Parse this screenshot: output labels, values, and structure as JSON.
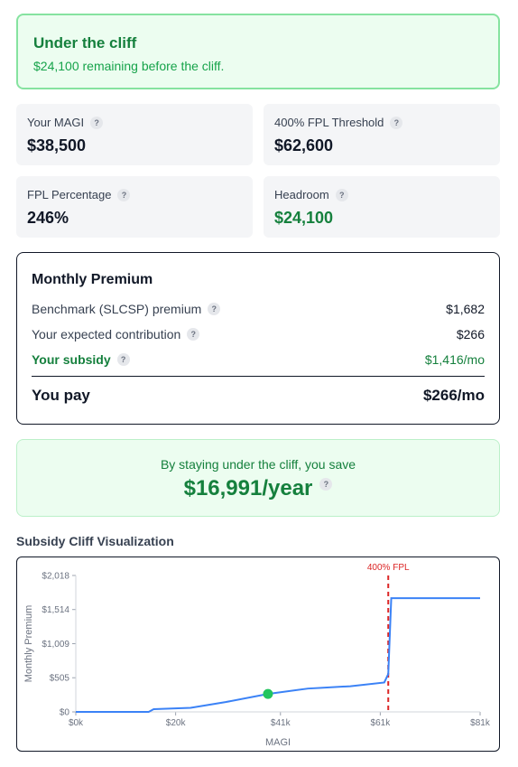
{
  "status": {
    "title": "Under the cliff",
    "subtitle": "$24,100 remaining before the cliff."
  },
  "stats": [
    {
      "label": "Your MAGI",
      "value": "$38,500",
      "help": "?"
    },
    {
      "label": "400% FPL Threshold",
      "value": "$62,600",
      "help": "?"
    },
    {
      "label": "FPL Percentage",
      "value": "246%",
      "help": "?"
    },
    {
      "label": "Headroom",
      "value": "$24,100",
      "help": "?",
      "accent": "green"
    }
  ],
  "premium": {
    "title": "Monthly Premium",
    "rows": [
      {
        "label": "Benchmark (SLCSP) premium",
        "value": "$1,682",
        "help": "?"
      },
      {
        "label": "Your expected contribution",
        "value": "$266",
        "help": "?"
      },
      {
        "label": "Your subsidy",
        "value": "$1,416/mo",
        "help": "?",
        "accent": "green"
      }
    ],
    "you_pay_label": "You pay",
    "you_pay_value": "$266/mo"
  },
  "savings": {
    "text": "By staying under the cliff, you save",
    "amount": "$16,991/year",
    "help": "?"
  },
  "visualization": {
    "title": "Subsidy Cliff Visualization"
  },
  "colors": {
    "accent_green": "#15803d",
    "line_blue": "#3b82f6",
    "cliff_red": "#dc2626",
    "marker_green": "#22c55e"
  },
  "chart_data": {
    "type": "line",
    "xlabel": "MAGI",
    "ylabel": "Monthly Premium",
    "xlim": [
      0,
      81000
    ],
    "ylim": [
      0,
      2018
    ],
    "x_ticks": [
      0,
      20000,
      41000,
      61000,
      81000
    ],
    "x_tick_labels": [
      "$0k",
      "$20k",
      "$41k",
      "$61k",
      "$81k"
    ],
    "y_ticks": [
      0,
      505,
      1009,
      1514,
      2018
    ],
    "y_tick_labels": [
      "$0",
      "$505",
      "$1,009",
      "$1,514",
      "$2,018"
    ],
    "series": [
      {
        "color": "#3b82f6",
        "x": [
          0,
          14600,
          15600,
          23000,
          30000,
          38500,
          46500,
          55000,
          61800,
          62600,
          63200,
          81000
        ],
        "y": [
          0,
          0,
          40,
          60,
          145,
          266,
          345,
          380,
          435,
          560,
          1682,
          1682
        ]
      }
    ],
    "cliff": {
      "x": 62600,
      "label": "400% FPL",
      "color": "#dc2626"
    },
    "marker": {
      "x": 38500,
      "y": 266,
      "color": "#22c55e"
    },
    "grid": false
  }
}
